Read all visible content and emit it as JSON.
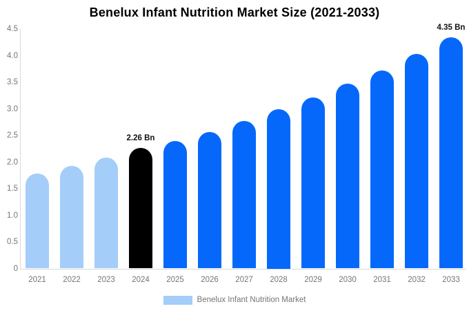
{
  "page": {
    "background": "#ffffff"
  },
  "header": {
    "title": "Benelux Infant Nutrition Market Size (2021-2033)"
  },
  "chart_data": {
    "type": "bar",
    "title": "Benelux Infant Nutrition Market Size (2021-2033)",
    "categories": [
      "2021",
      "2022",
      "2023",
      "2024",
      "2025",
      "2026",
      "2027",
      "2028",
      "2029",
      "2030",
      "2031",
      "2032",
      "2033"
    ],
    "series": [
      {
        "name": "Benelux Infant Nutrition Market",
        "values": [
          1.78,
          1.93,
          2.08,
          2.26,
          2.4,
          2.57,
          2.77,
          3.0,
          3.22,
          3.47,
          3.72,
          4.03,
          4.35
        ]
      }
    ],
    "xlabel": "",
    "ylabel": "",
    "ylim": [
      0,
      4.5
    ],
    "ytick_labels": [
      "0",
      "0.5",
      "1.0",
      "1.5",
      "2.0",
      "2.5",
      "3.0",
      "3.5",
      "4.0",
      "4.5"
    ],
    "grid": false,
    "legend_position": "bottom",
    "annotations": [
      {
        "category": "2024",
        "text": "2.26 Bn"
      },
      {
        "category": "2033",
        "text": "4.35 Bn"
      }
    ],
    "bar_roles": [
      "past",
      "past",
      "past",
      "highlight",
      "future",
      "future",
      "future",
      "future",
      "future",
      "future",
      "future",
      "future",
      "future"
    ],
    "colors": {
      "past": "#a4cdfa",
      "highlight": "#000000",
      "future": "#0568fb",
      "axis_text": "#757575",
      "axis_line": "#d9d9d9",
      "annotation_text": "#111111"
    }
  },
  "legend": {
    "items": [
      {
        "label": "Benelux Infant Nutrition Market",
        "swatch_color": "#a4cdfa"
      }
    ]
  }
}
